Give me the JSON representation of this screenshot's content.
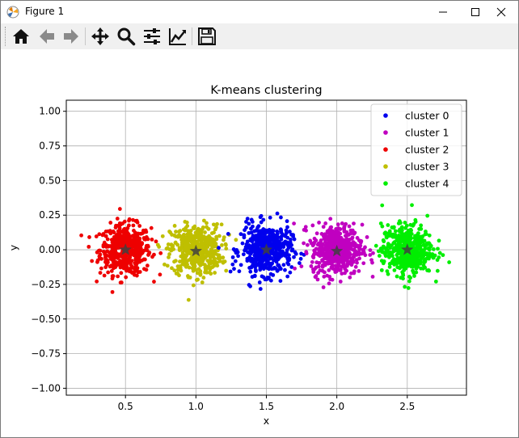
{
  "window": {
    "title": "Figure 1",
    "minimize_icon": "minimize-icon",
    "maximize_icon": "maximize-icon",
    "close_icon": "close-icon"
  },
  "toolbar": {
    "buttons": [
      {
        "name": "home",
        "icon": "home-icon"
      },
      {
        "name": "back",
        "icon": "back-arrow-icon"
      },
      {
        "name": "forward",
        "icon": "forward-arrow-icon"
      },
      {
        "name": "pan",
        "icon": "move-icon"
      },
      {
        "name": "zoom",
        "icon": "zoom-icon"
      },
      {
        "name": "subplots",
        "icon": "sliders-icon"
      },
      {
        "name": "axes",
        "icon": "line-chart-icon"
      },
      {
        "name": "save",
        "icon": "save-icon"
      }
    ]
  },
  "chart_data": {
    "type": "scatter",
    "title": "K-means clustering",
    "xlabel": "x",
    "ylabel": "y",
    "xlim": [
      0.08,
      2.92
    ],
    "ylim": [
      -1.05,
      1.08
    ],
    "xticks": [
      "0.5",
      "1.0",
      "1.5",
      "2.0",
      "2.5"
    ],
    "xtick_values": [
      0.5,
      1.0,
      1.5,
      2.0,
      2.5
    ],
    "yticks": [
      "1.00",
      "0.75",
      "0.50",
      "0.25",
      "0.00",
      "−0.25",
      "−0.50",
      "−0.75",
      "−1.00"
    ],
    "ytick_values": [
      1.0,
      0.75,
      0.5,
      0.25,
      0.0,
      -0.25,
      -0.5,
      -0.75,
      -1.0
    ],
    "grid": true,
    "legend_position": "top-right",
    "series": [
      {
        "name": "cluster 0",
        "color": "#0000ee",
        "center": [
          1.5,
          0.0
        ],
        "spread": [
          0.09,
          0.09
        ],
        "points": 500
      },
      {
        "name": "cluster 1",
        "color": "#c000c0",
        "center": [
          2.0,
          0.0
        ],
        "spread": [
          0.09,
          0.09
        ],
        "points": 500
      },
      {
        "name": "cluster 2",
        "color": "#ee0000",
        "center": [
          0.5,
          0.0
        ],
        "spread": [
          0.09,
          0.09
        ],
        "points": 500
      },
      {
        "name": "cluster 3",
        "color": "#bfbf00",
        "center": [
          1.0,
          0.0
        ],
        "spread": [
          0.09,
          0.09
        ],
        "points": 500
      },
      {
        "name": "cluster 4",
        "color": "#00ee00",
        "center": [
          2.5,
          0.0
        ],
        "spread": [
          0.09,
          0.09
        ],
        "points": 500
      }
    ],
    "centroids": {
      "color": "#404040",
      "marker": "star",
      "points": [
        [
          0.5,
          0.0
        ],
        [
          1.0,
          -0.01
        ],
        [
          1.5,
          0.0
        ],
        [
          2.0,
          -0.01
        ],
        [
          2.5,
          0.0
        ]
      ]
    }
  }
}
